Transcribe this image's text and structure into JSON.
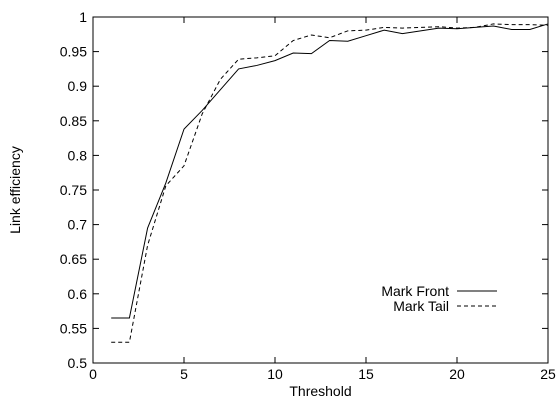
{
  "chart_data": {
    "type": "line",
    "title": "",
    "xlabel": "Threshold",
    "ylabel": "Link efficiency",
    "xlim": [
      0,
      25
    ],
    "ylim": [
      0.5,
      1
    ],
    "x_ticks": [
      0,
      5,
      10,
      15,
      20,
      25
    ],
    "y_ticks": [
      0.5,
      0.55,
      0.6,
      0.65,
      0.7,
      0.75,
      0.8,
      0.85,
      0.9,
      0.95,
      1
    ],
    "x_tick_labels": [
      "0",
      "5",
      "10",
      "15",
      "20",
      "25"
    ],
    "y_tick_labels": [
      "0.5",
      "0.55",
      "0.6",
      "0.65",
      "0.7",
      "0.75",
      "0.8",
      "0.85",
      "0.9",
      "0.95",
      "1"
    ],
    "grid": false,
    "legend_position": "bottom-right",
    "series": [
      {
        "name": "Mark Front",
        "line_style": "solid",
        "color": "#000000",
        "x": [
          1,
          2,
          3,
          4,
          5,
          6,
          7,
          8,
          9,
          10,
          11,
          12,
          13,
          14,
          15,
          16,
          17,
          18,
          19,
          20,
          21,
          22,
          23,
          24,
          25
        ],
        "y": [
          0.565,
          0.565,
          0.695,
          0.76,
          0.838,
          0.865,
          0.895,
          0.925,
          0.93,
          0.937,
          0.948,
          0.947,
          0.966,
          0.965,
          0.973,
          0.981,
          0.976,
          0.98,
          0.984,
          0.983,
          0.985,
          0.987,
          0.982,
          0.982,
          0.99
        ]
      },
      {
        "name": "Mark Tail",
        "line_style": "dashed",
        "color": "#000000",
        "x": [
          1,
          2,
          3,
          4,
          5,
          6,
          7,
          8,
          9,
          10,
          11,
          12,
          13,
          14,
          15,
          16,
          17,
          18,
          19,
          20,
          21,
          22,
          23,
          24,
          25
        ],
        "y": [
          0.53,
          0.53,
          0.67,
          0.756,
          0.785,
          0.86,
          0.91,
          0.939,
          0.941,
          0.944,
          0.966,
          0.974,
          0.97,
          0.98,
          0.981,
          0.985,
          0.984,
          0.985,
          0.986,
          0.984,
          0.985,
          0.99,
          0.989,
          0.989,
          0.988
        ]
      }
    ]
  }
}
